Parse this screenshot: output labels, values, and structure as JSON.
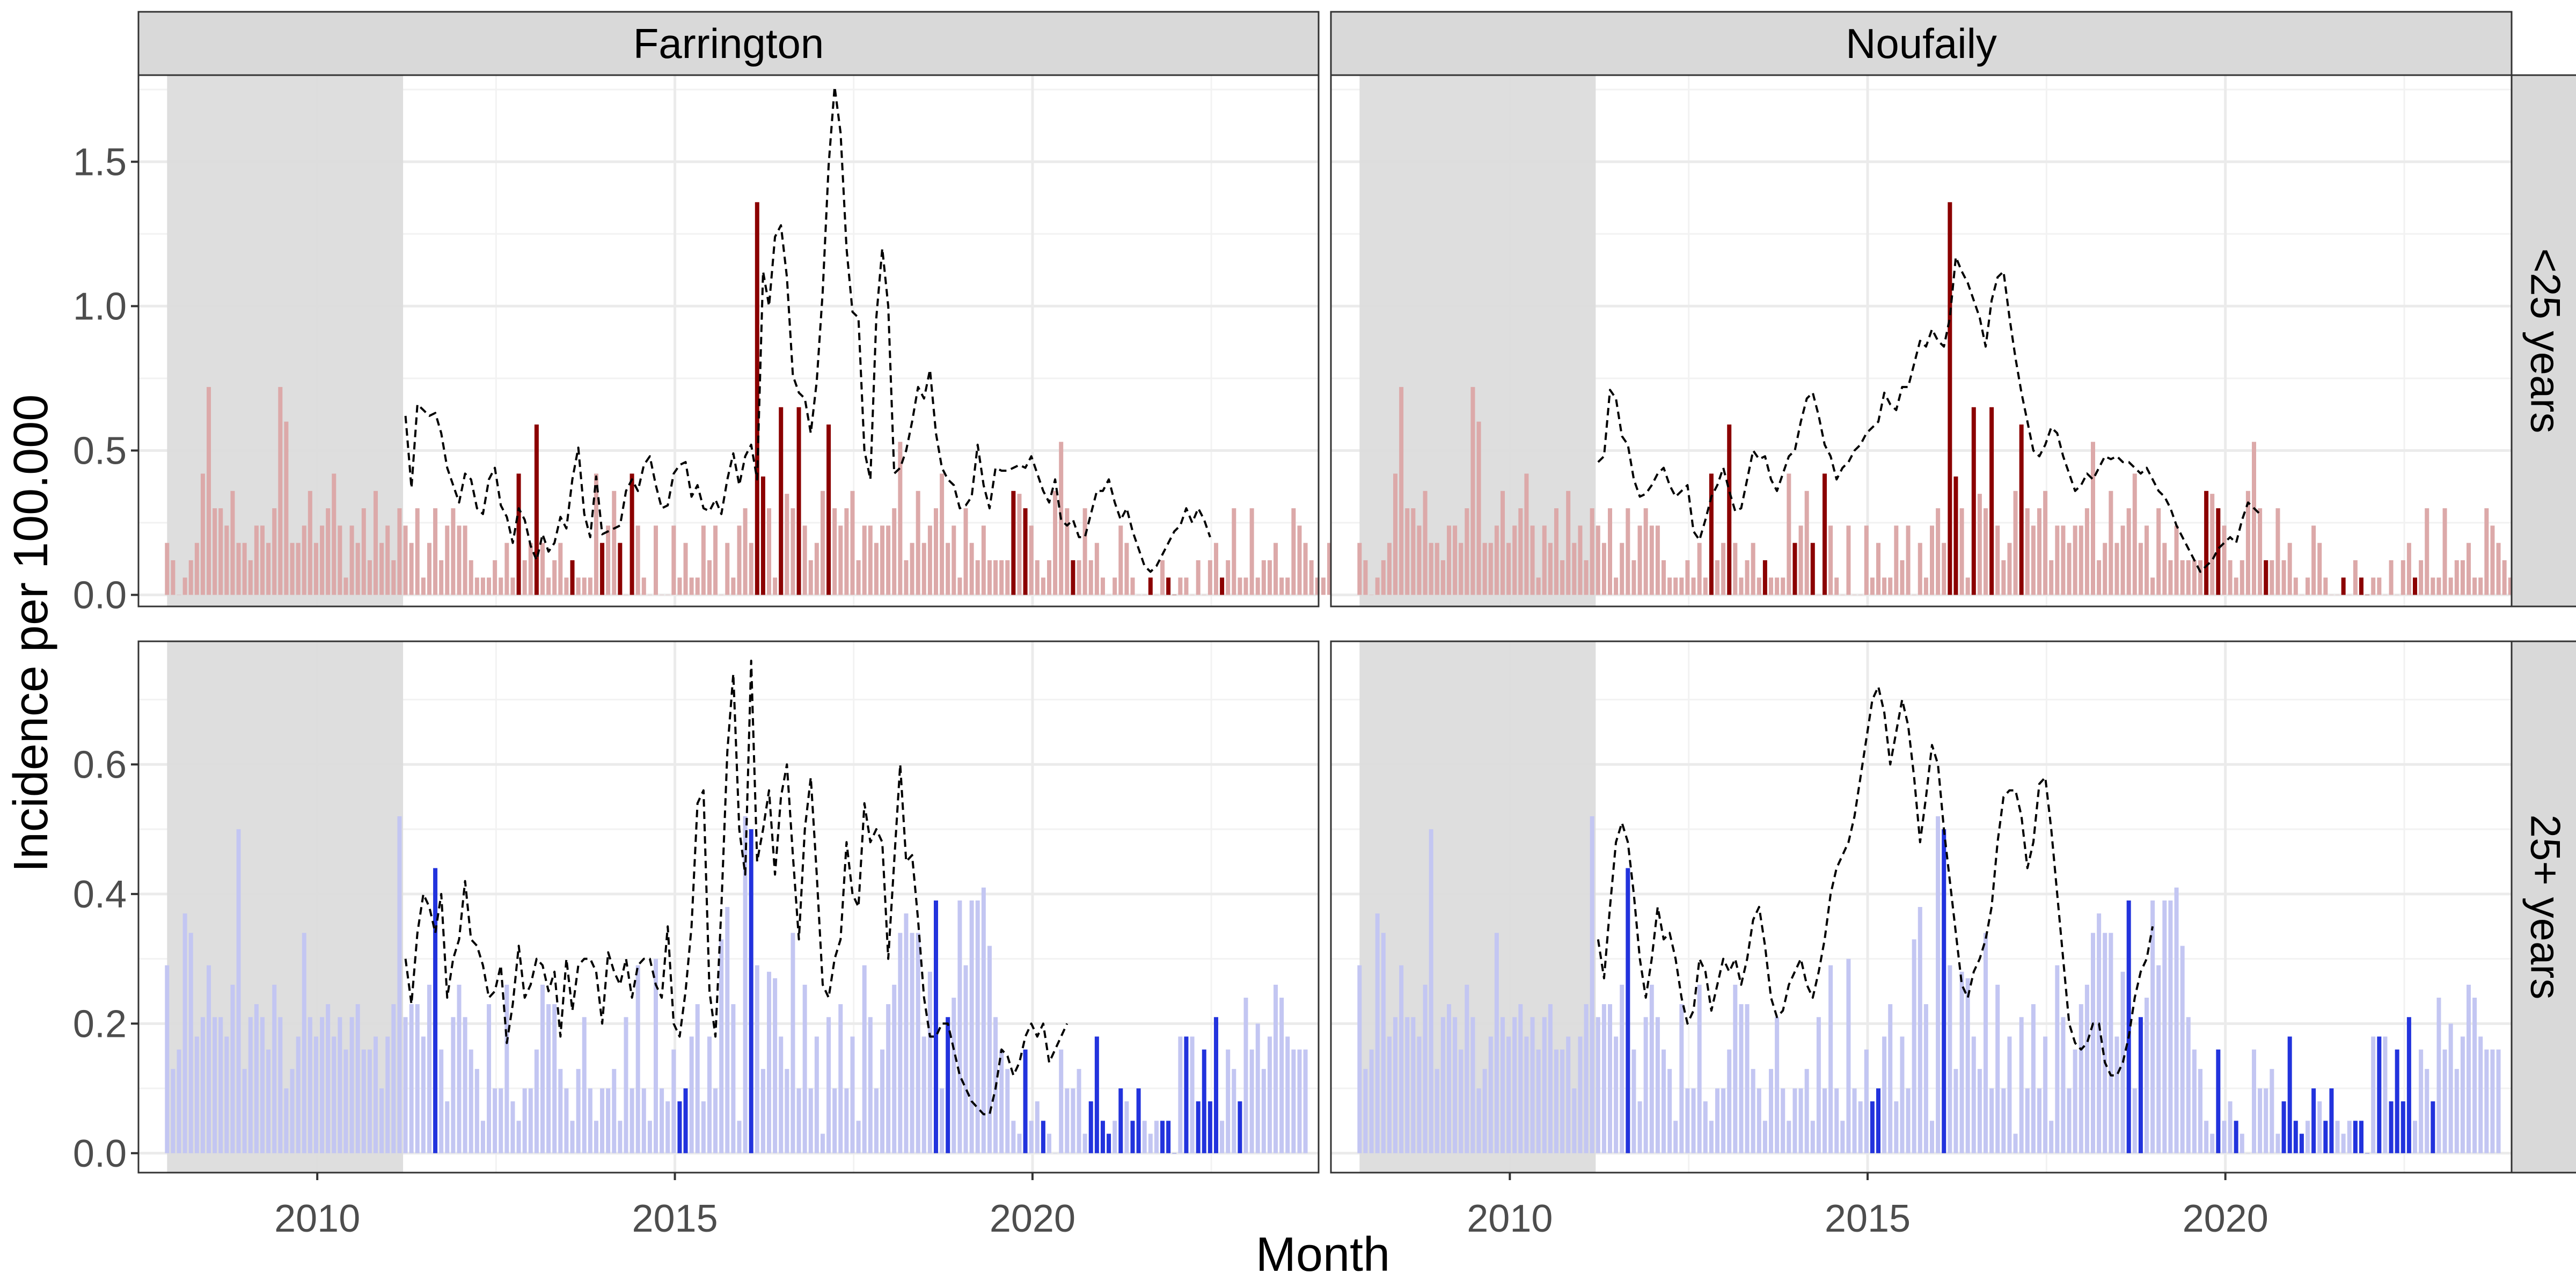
{
  "chart_data": {
    "type": "bar",
    "xlabel": "Month",
    "ylabel": "Incidence per 100.000",
    "columns": [
      "Farrington",
      "Noufaily"
    ],
    "rows": [
      "<25 years",
      "25+ years"
    ],
    "x_range": [
      2007.5,
      2024.0
    ],
    "x_ticks": [
      2010,
      2015,
      2020
    ],
    "baseline_period": [
      2007.9,
      2011.2
    ],
    "bar_start_year": 2007.9,
    "bar_step_months": 1,
    "colors": {
      "baseline_shade": "#dcdcdc",
      "strip_bg": "#d9d9d9",
      "young_bar": "#dca9a9",
      "young_alarm": "#8b0000",
      "old_bar": "#c3c6f2",
      "old_alarm": "#2233dd",
      "threshold_line": "#000000"
    },
    "panel_rows": [
      {
        "label": "<25 years",
        "y_ticks": [
          0.0,
          0.5,
          1.0,
          1.5
        ],
        "y_tick_labels": [
          "0.0",
          "0.5",
          "1.0",
          "1.5"
        ],
        "ylim": [
          -0.04,
          1.8
        ],
        "values": [
          0.18,
          0.12,
          0,
          0.06,
          0.12,
          0.18,
          0.42,
          0.72,
          0.3,
          0.3,
          0.24,
          0.36,
          0.18,
          0.18,
          0.12,
          0.24,
          0.24,
          0.18,
          0.3,
          0.72,
          0.6,
          0.18,
          0.18,
          0.24,
          0.36,
          0.18,
          0.24,
          0.3,
          0.42,
          0.24,
          0.06,
          0.24,
          0.18,
          0.3,
          0.12,
          0.36,
          0.18,
          0.24,
          0.12,
          0.3,
          0.24,
          0.18,
          0.3,
          0.06,
          0.18,
          0.3,
          0.12,
          0.24,
          0.3,
          0.24,
          0.24,
          0.12,
          0.06,
          0.06,
          0.06,
          0.12,
          0.06,
          0.18,
          0.06,
          0.42,
          0.12,
          0.18,
          0.59,
          0.18,
          0.06,
          0.12,
          0.18,
          0.06,
          0.12,
          0.06,
          0.06,
          0.06,
          0.42,
          0.18,
          0.24,
          0.36,
          0.18,
          0,
          0.42,
          0.24,
          0.06,
          0,
          0.24,
          0,
          0,
          0.24,
          0.06,
          0.18,
          0.06,
          0.06,
          0.24,
          0.12,
          0.24,
          0,
          0.18,
          0.06,
          0.24,
          0.3,
          0.18,
          1.36,
          0.41,
          0.3,
          0.06,
          0.65,
          0.35,
          0.3,
          0.65,
          0.24,
          0.12,
          0.18,
          0.36,
          0.59,
          0.3,
          0.24,
          0.3,
          0.36,
          0.12,
          0.24,
          0.24,
          0.18,
          0.24,
          0.24,
          0.3,
          0.53,
          0.12,
          0.18,
          0.36,
          0.18,
          0.24,
          0.3,
          0.42,
          0.18,
          0.24,
          0.06,
          0.3,
          0.18,
          0.12,
          0.24,
          0.12,
          0.12,
          0.12,
          0.12,
          0.36,
          0.35,
          0.3,
          0.24,
          0.12,
          0.06,
          0.12,
          0.36,
          0.53,
          0.3,
          0.12,
          0.12,
          0.3,
          0.12,
          0.18,
          0.06,
          0,
          0.06,
          0.24,
          0.18,
          0.06,
          0,
          0,
          0.06,
          0,
          0.12,
          0.06,
          0,
          0.06,
          0.06,
          0,
          0.12,
          0,
          0.12,
          0.18,
          0.06,
          0.12,
          0.3,
          0.06,
          0.06,
          0.3,
          0.06,
          0.12,
          0.12,
          0.18,
          0.06,
          0.06,
          0.3,
          0.24,
          0.18,
          0.12,
          0.06,
          0.06,
          0.18,
          0.06,
          0.06,
          0.18
        ],
        "panels": [
          {
            "alarms": [
              59,
              62,
              68,
              73,
              76,
              78,
              99,
              100,
              103,
              106,
              111,
              142,
              144,
              152,
              165,
              168,
              169,
              177
            ],
            "threshold_start_index": 40,
            "threshold": [
              0.62,
              0.37,
              0.66,
              0.64,
              0.62,
              0.63,
              0.56,
              0.44,
              0.38,
              0.32,
              0.42,
              0.4,
              0.3,
              0.28,
              0.4,
              0.44,
              0.31,
              0.27,
              0.18,
              0.3,
              0.26,
              0.17,
              0.12,
              0.21,
              0.15,
              0.18,
              0.27,
              0.23,
              0.4,
              0.51,
              0.28,
              0.2,
              0.41,
              0.21,
              0.22,
              0.23,
              0.24,
              0.36,
              0.4,
              0.36,
              0.45,
              0.48,
              0.38,
              0.3,
              0.31,
              0.42,
              0.45,
              0.46,
              0.34,
              0.38,
              0.3,
              0.29,
              0.33,
              0.28,
              0.4,
              0.49,
              0.38,
              0.48,
              0.52,
              0.4,
              1.12,
              1.0,
              1.24,
              1.28,
              1.1,
              0.76,
              0.7,
              0.68,
              0.56,
              0.74,
              1.05,
              1.49,
              1.76,
              1.6,
              1.2,
              0.98,
              0.96,
              0.5,
              0.4,
              0.96,
              1.2,
              1.0,
              0.42,
              0.44,
              0.5,
              0.6,
              0.72,
              0.68,
              0.78,
              0.56,
              0.44,
              0.4,
              0.38,
              0.3,
              0.31,
              0.34,
              0.52,
              0.38,
              0.3,
              0.44,
              0.43,
              0.43,
              0.44,
              0.45,
              0.44,
              0.48,
              0.42,
              0.36,
              0.32,
              0.4,
              0.26,
              0.24,
              0.26,
              0.2,
              0.2,
              0.28,
              0.36,
              0.36,
              0.4,
              0.32,
              0.26,
              0.3,
              0.22,
              0.16,
              0.1,
              0.08,
              0.1,
              0.14,
              0.18,
              0.22,
              0.24,
              0.3,
              0.25,
              0.3,
              0.26,
              0.2
            ]
          },
          {
            "alarms": [
              59,
              62,
              68,
              73,
              76,
              78,
              99,
              100,
              103,
              106,
              111,
              142,
              144,
              152,
              165,
              168,
              169,
              177
            ],
            "threshold_start_index": 40,
            "threshold": [
              0.46,
              0.48,
              0.71,
              0.68,
              0.55,
              0.52,
              0.4,
              0.34,
              0.35,
              0.38,
              0.42,
              0.44,
              0.38,
              0.34,
              0.36,
              0.38,
              0.22,
              0.19,
              0.26,
              0.34,
              0.38,
              0.44,
              0.36,
              0.29,
              0.3,
              0.4,
              0.5,
              0.47,
              0.48,
              0.4,
              0.36,
              0.42,
              0.48,
              0.5,
              0.6,
              0.68,
              0.7,
              0.62,
              0.52,
              0.48,
              0.4,
              0.44,
              0.46,
              0.5,
              0.52,
              0.56,
              0.58,
              0.6,
              0.7,
              0.66,
              0.64,
              0.72,
              0.72,
              0.8,
              0.88,
              0.86,
              0.92,
              0.88,
              0.86,
              0.96,
              1.17,
              1.12,
              1.08,
              1.02,
              0.96,
              0.86,
              1.02,
              1.1,
              1.12,
              0.96,
              0.82,
              0.7,
              0.6,
              0.5,
              0.48,
              0.52,
              0.58,
              0.56,
              0.48,
              0.42,
              0.36,
              0.38,
              0.42,
              0.4,
              0.44,
              0.48,
              0.47,
              0.48,
              0.46,
              0.46,
              0.44,
              0.42,
              0.44,
              0.4,
              0.36,
              0.34,
              0.3,
              0.24,
              0.2,
              0.16,
              0.12,
              0.08,
              0.1,
              0.12,
              0.16,
              0.18,
              0.2,
              0.18,
              0.26,
              0.32,
              0.3,
              0.28
            ]
          }
        ]
      },
      {
        "label": "25+ years",
        "y_ticks": [
          0.0,
          0.2,
          0.4,
          0.6
        ],
        "y_tick_labels": [
          "0.0",
          "0.2",
          "0.4",
          "0.6"
        ],
        "ylim": [
          -0.03,
          0.79
        ],
        "values": [
          0.29,
          0.13,
          0.16,
          0.37,
          0.34,
          0.18,
          0.21,
          0.29,
          0.21,
          0.21,
          0.18,
          0.26,
          0.5,
          0.13,
          0.21,
          0.23,
          0.21,
          0.16,
          0.26,
          0.21,
          0.1,
          0.13,
          0.18,
          0.34,
          0.21,
          0.18,
          0.21,
          0.23,
          0.18,
          0.21,
          0.16,
          0.21,
          0.23,
          0.16,
          0.16,
          0.18,
          0.1,
          0.18,
          0.23,
          0.52,
          0.21,
          0.23,
          0.23,
          0.18,
          0.26,
          0.44,
          0.16,
          0.08,
          0.21,
          0.26,
          0.21,
          0.16,
          0.13,
          0.05,
          0.23,
          0.1,
          0.1,
          0.26,
          0.08,
          0.05,
          0.1,
          0.1,
          0.16,
          0.26,
          0.23,
          0.23,
          0.13,
          0.1,
          0.05,
          0.13,
          0.21,
          0.1,
          0.05,
          0.1,
          0.1,
          0.13,
          0.05,
          0.21,
          0.1,
          0.29,
          0.1,
          0.05,
          0.3,
          0.1,
          0.08,
          0.16,
          0.08,
          0.1,
          0.18,
          0.23,
          0.08,
          0.18,
          0.1,
          0.33,
          0.38,
          0.23,
          0.05,
          0.52,
          0.5,
          0.29,
          0.13,
          0.28,
          0.27,
          0.18,
          0.13,
          0.34,
          0.1,
          0.26,
          0.1,
          0.18,
          0.03,
          0.21,
          0.1,
          0.23,
          0.1,
          0.18,
          0.05,
          0.29,
          0.21,
          0.1,
          0.16,
          0.23,
          0.26,
          0.34,
          0.37,
          0.34,
          0.34,
          0.18,
          0.28,
          0.39,
          0.1,
          0.21,
          0.24,
          0.39,
          0.29,
          0.39,
          0.39,
          0.41,
          0.32,
          0.21,
          0.16,
          0.13,
          0.05,
          0.03,
          0.16,
          0.05,
          0.08,
          0.05,
          0.03,
          0.0,
          0.16,
          0.1,
          0.1,
          0.13,
          0.03,
          0.08,
          0.18,
          0.05,
          0.03,
          0.05,
          0.1,
          0.08,
          0.05,
          0.1,
          0.05,
          0.03,
          0.05,
          0.05,
          0.05,
          0.0,
          0.18,
          0.18,
          0.18,
          0.08,
          0.16,
          0.08,
          0.21,
          0.05,
          0.16,
          0.13,
          0.08,
          0.24,
          0.16,
          0.2,
          0.13,
          0.18,
          0.26,
          0.24,
          0.18,
          0.16,
          0.16,
          0.16
        ],
        "panels": [
          {
            "alarms": [
              45,
              86,
              87,
              98,
              129,
              131,
              144,
              147,
              155,
              156,
              157,
              158,
              160,
              162,
              163,
              167,
              168,
              169,
              171,
              173,
              174,
              175,
              176,
              180,
              200,
              205,
              207,
              209,
              210,
              211,
              213,
              214
            ],
            "threshold_start_index": 40,
            "threshold": [
              0.3,
              0.23,
              0.34,
              0.4,
              0.38,
              0.34,
              0.4,
              0.24,
              0.3,
              0.33,
              0.42,
              0.33,
              0.32,
              0.29,
              0.24,
              0.25,
              0.29,
              0.17,
              0.23,
              0.32,
              0.24,
              0.26,
              0.3,
              0.29,
              0.25,
              0.28,
              0.18,
              0.3,
              0.22,
              0.29,
              0.3,
              0.3,
              0.28,
              0.2,
              0.31,
              0.28,
              0.26,
              0.3,
              0.24,
              0.29,
              0.3,
              0.3,
              0.26,
              0.24,
              0.35,
              0.2,
              0.18,
              0.25,
              0.35,
              0.54,
              0.56,
              0.25,
              0.18,
              0.38,
              0.62,
              0.74,
              0.5,
              0.43,
              0.76,
              0.45,
              0.5,
              0.56,
              0.43,
              0.55,
              0.6,
              0.46,
              0.33,
              0.5,
              0.58,
              0.43,
              0.26,
              0.24,
              0.3,
              0.33,
              0.48,
              0.4,
              0.38,
              0.54,
              0.48,
              0.5,
              0.48,
              0.3,
              0.45,
              0.6,
              0.45,
              0.46,
              0.36,
              0.24,
              0.18,
              0.18,
              0.2,
              0.2,
              0.16,
              0.12,
              0.1,
              0.08,
              0.07,
              0.06,
              0.06,
              0.1,
              0.16,
              0.15,
              0.12,
              0.14,
              0.18,
              0.2,
              0.18,
              0.2,
              0.14,
              0.16,
              0.18,
              0.2
            ]
          },
          {
            "alarms": [
              45,
              86,
              87,
              98,
              129,
              131,
              144,
              147,
              155,
              156,
              157,
              158,
              160,
              162,
              163,
              167,
              168,
              169,
              171,
              173,
              174,
              175,
              176,
              180,
              200,
              205,
              207,
              209,
              210,
              211,
              213,
              214
            ],
            "threshold_start_index": 40,
            "threshold": [
              0.33,
              0.27,
              0.38,
              0.48,
              0.51,
              0.48,
              0.4,
              0.3,
              0.24,
              0.3,
              0.38,
              0.33,
              0.34,
              0.3,
              0.24,
              0.2,
              0.22,
              0.3,
              0.28,
              0.22,
              0.26,
              0.3,
              0.28,
              0.3,
              0.26,
              0.3,
              0.36,
              0.38,
              0.32,
              0.24,
              0.21,
              0.22,
              0.26,
              0.28,
              0.3,
              0.26,
              0.24,
              0.28,
              0.33,
              0.4,
              0.44,
              0.46,
              0.48,
              0.52,
              0.58,
              0.64,
              0.7,
              0.72,
              0.68,
              0.6,
              0.65,
              0.7,
              0.66,
              0.58,
              0.48,
              0.55,
              0.63,
              0.6,
              0.5,
              0.42,
              0.34,
              0.26,
              0.24,
              0.28,
              0.3,
              0.33,
              0.38,
              0.48,
              0.55,
              0.56,
              0.56,
              0.52,
              0.44,
              0.48,
              0.57,
              0.58,
              0.5,
              0.4,
              0.3,
              0.2,
              0.17,
              0.16,
              0.17,
              0.2,
              0.2,
              0.14,
              0.12,
              0.12,
              0.14,
              0.18,
              0.24,
              0.28,
              0.3,
              0.35
            ]
          }
        ]
      }
    ],
    "legend": "none",
    "grid": true
  }
}
